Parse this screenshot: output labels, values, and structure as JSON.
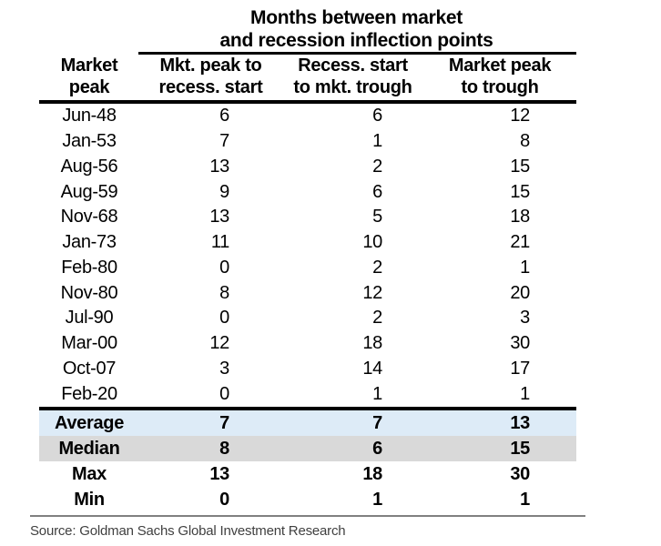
{
  "title": {
    "line1": "Months between market",
    "line2": "and recession inflection points"
  },
  "header": {
    "col1": {
      "line1": "Market",
      "line2": "peak"
    },
    "col2": {
      "line1": "Mkt. peak to",
      "line2": "recess. start"
    },
    "col3": {
      "line1": "Recess. start",
      "line2": "to mkt. trough"
    },
    "col4": {
      "line1": "Market peak",
      "line2": "to trough"
    }
  },
  "chart_data": {
    "type": "table",
    "title": "Months between market and recession inflection points",
    "columns": [
      "Market peak",
      "Mkt. peak to recess. start",
      "Recess. start to mkt. trough",
      "Market peak to trough"
    ],
    "rows": [
      [
        "Jun-48",
        6,
        6,
        12
      ],
      [
        "Jan-53",
        7,
        1,
        8
      ],
      [
        "Aug-56",
        13,
        2,
        15
      ],
      [
        "Aug-59",
        9,
        6,
        15
      ],
      [
        "Nov-68",
        13,
        5,
        18
      ],
      [
        "Jan-73",
        11,
        10,
        21
      ],
      [
        "Feb-80",
        0,
        2,
        1
      ],
      [
        "Nov-80",
        8,
        12,
        20
      ],
      [
        "Jul-90",
        0,
        2,
        3
      ],
      [
        "Mar-00",
        12,
        18,
        30
      ],
      [
        "Oct-07",
        3,
        14,
        17
      ],
      [
        "Feb-20",
        0,
        1,
        1
      ]
    ],
    "summary_rows": [
      {
        "label": "Average",
        "values": [
          7,
          7,
          13
        ],
        "bg": "#DDEBF7"
      },
      {
        "label": "Median",
        "values": [
          8,
          6,
          15
        ],
        "bg": "#D9D9D9"
      },
      {
        "label": "Max",
        "values": [
          13,
          18,
          30
        ],
        "bg": null
      },
      {
        "label": "Min",
        "values": [
          0,
          1,
          1
        ],
        "bg": null
      }
    ]
  },
  "colors": {
    "rule_black": "#000000",
    "source_rule_gray": "#808080",
    "average_row_bg": "#DDEBF7",
    "median_row_bg": "#D9D9D9",
    "text": "#000000",
    "source_text": "#404040"
  },
  "source": "Source: Goldman Sachs Global Investment Research"
}
